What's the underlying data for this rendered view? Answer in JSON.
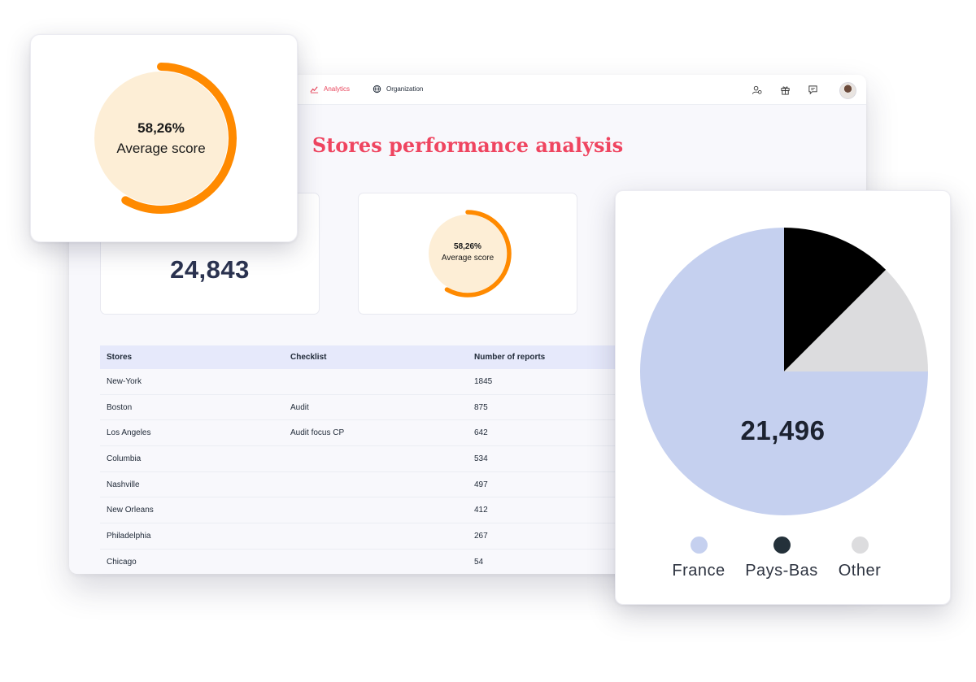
{
  "nav": {
    "analytics": "Analytics",
    "organization": "Organization"
  },
  "top_icons": [
    "add-user-icon",
    "gift-icon",
    "chat-icon",
    "avatar"
  ],
  "page_title": "Stores performance analysis",
  "kpis": {
    "total": "24,843",
    "score": {
      "percent": "58,26%",
      "label": "Average score",
      "value": 0.5826
    }
  },
  "table": {
    "headers": [
      "Stores",
      "Checklist",
      "Number of reports"
    ],
    "rows": [
      [
        "New-York",
        "",
        "1845"
      ],
      [
        "Boston",
        "Audit",
        "875"
      ],
      [
        "Los Angeles",
        "Audit focus CP",
        "642"
      ],
      [
        "Columbia",
        "",
        "534"
      ],
      [
        "Nashville",
        "",
        "497"
      ],
      [
        "New Orleans",
        "",
        "412"
      ],
      [
        "Philadelphia",
        "",
        "267"
      ],
      [
        "Chicago",
        "",
        "54"
      ]
    ]
  },
  "float_score": {
    "percent": "58,26%",
    "label": "Average score"
  },
  "colors": {
    "accent": "#ef4560",
    "orange": "#ff8a00",
    "donut_fill": "#fdeed6",
    "france": "#c5d0ef",
    "paysbas": "#000000",
    "other": "#dcdcde",
    "table_header": "#e6e9fb"
  },
  "chart_data": {
    "type": "pie",
    "center_label": "21,496",
    "slices": [
      {
        "name": "France",
        "value": 75,
        "color": "#c5d0ef"
      },
      {
        "name": "Pays-Bas",
        "value": 12.5,
        "color": "#000000"
      },
      {
        "name": "Other",
        "value": 12.5,
        "color": "#dcdcde"
      }
    ],
    "legend": [
      {
        "name": "France",
        "color": "#c5d0ef"
      },
      {
        "name": "Pays-Bas",
        "color": "#24313a"
      },
      {
        "name": "Other",
        "color": "#dcdcde"
      }
    ],
    "legend_position": "bottom"
  }
}
